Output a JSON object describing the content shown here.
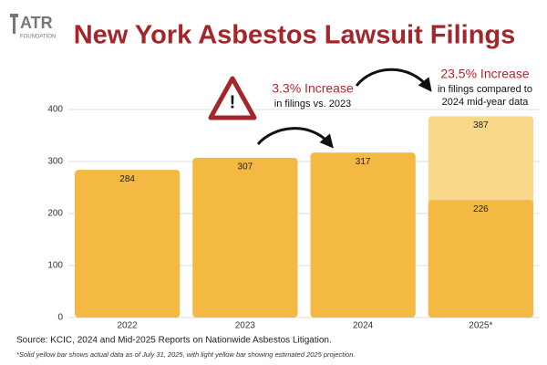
{
  "logo": {
    "text": "ATR",
    "sub": "FOUNDATION"
  },
  "chart_data": {
    "type": "bar",
    "title": "New York Asbestos Lawsuit Filings",
    "categories": [
      "2022",
      "2023",
      "2024",
      "2025*"
    ],
    "series": [
      {
        "color": "#f8d98c",
        "values": [
          null,
          null,
          null,
          387
        ]
      },
      {
        "color": "#f4b942",
        "values": [
          284,
          307,
          317,
          226
        ]
      }
    ],
    "ylim": [
      0,
      400
    ],
    "yticks": [
      0,
      100,
      200,
      300,
      400
    ],
    "grid": true,
    "annotations": [
      "3.3% Increase",
      "in filings vs. 2023",
      "23.5% Increase",
      "in filings compared to",
      "2024 mid-year data"
    ],
    "source": "Source: KCIC, 2024 and Mid-2025 Reports on Nationwide Asbestos Litigation.",
    "note": "*Solid yellow bar shows actual data as of July 31, 2025, with light yellow bar showing estimated 2025 projection."
  }
}
